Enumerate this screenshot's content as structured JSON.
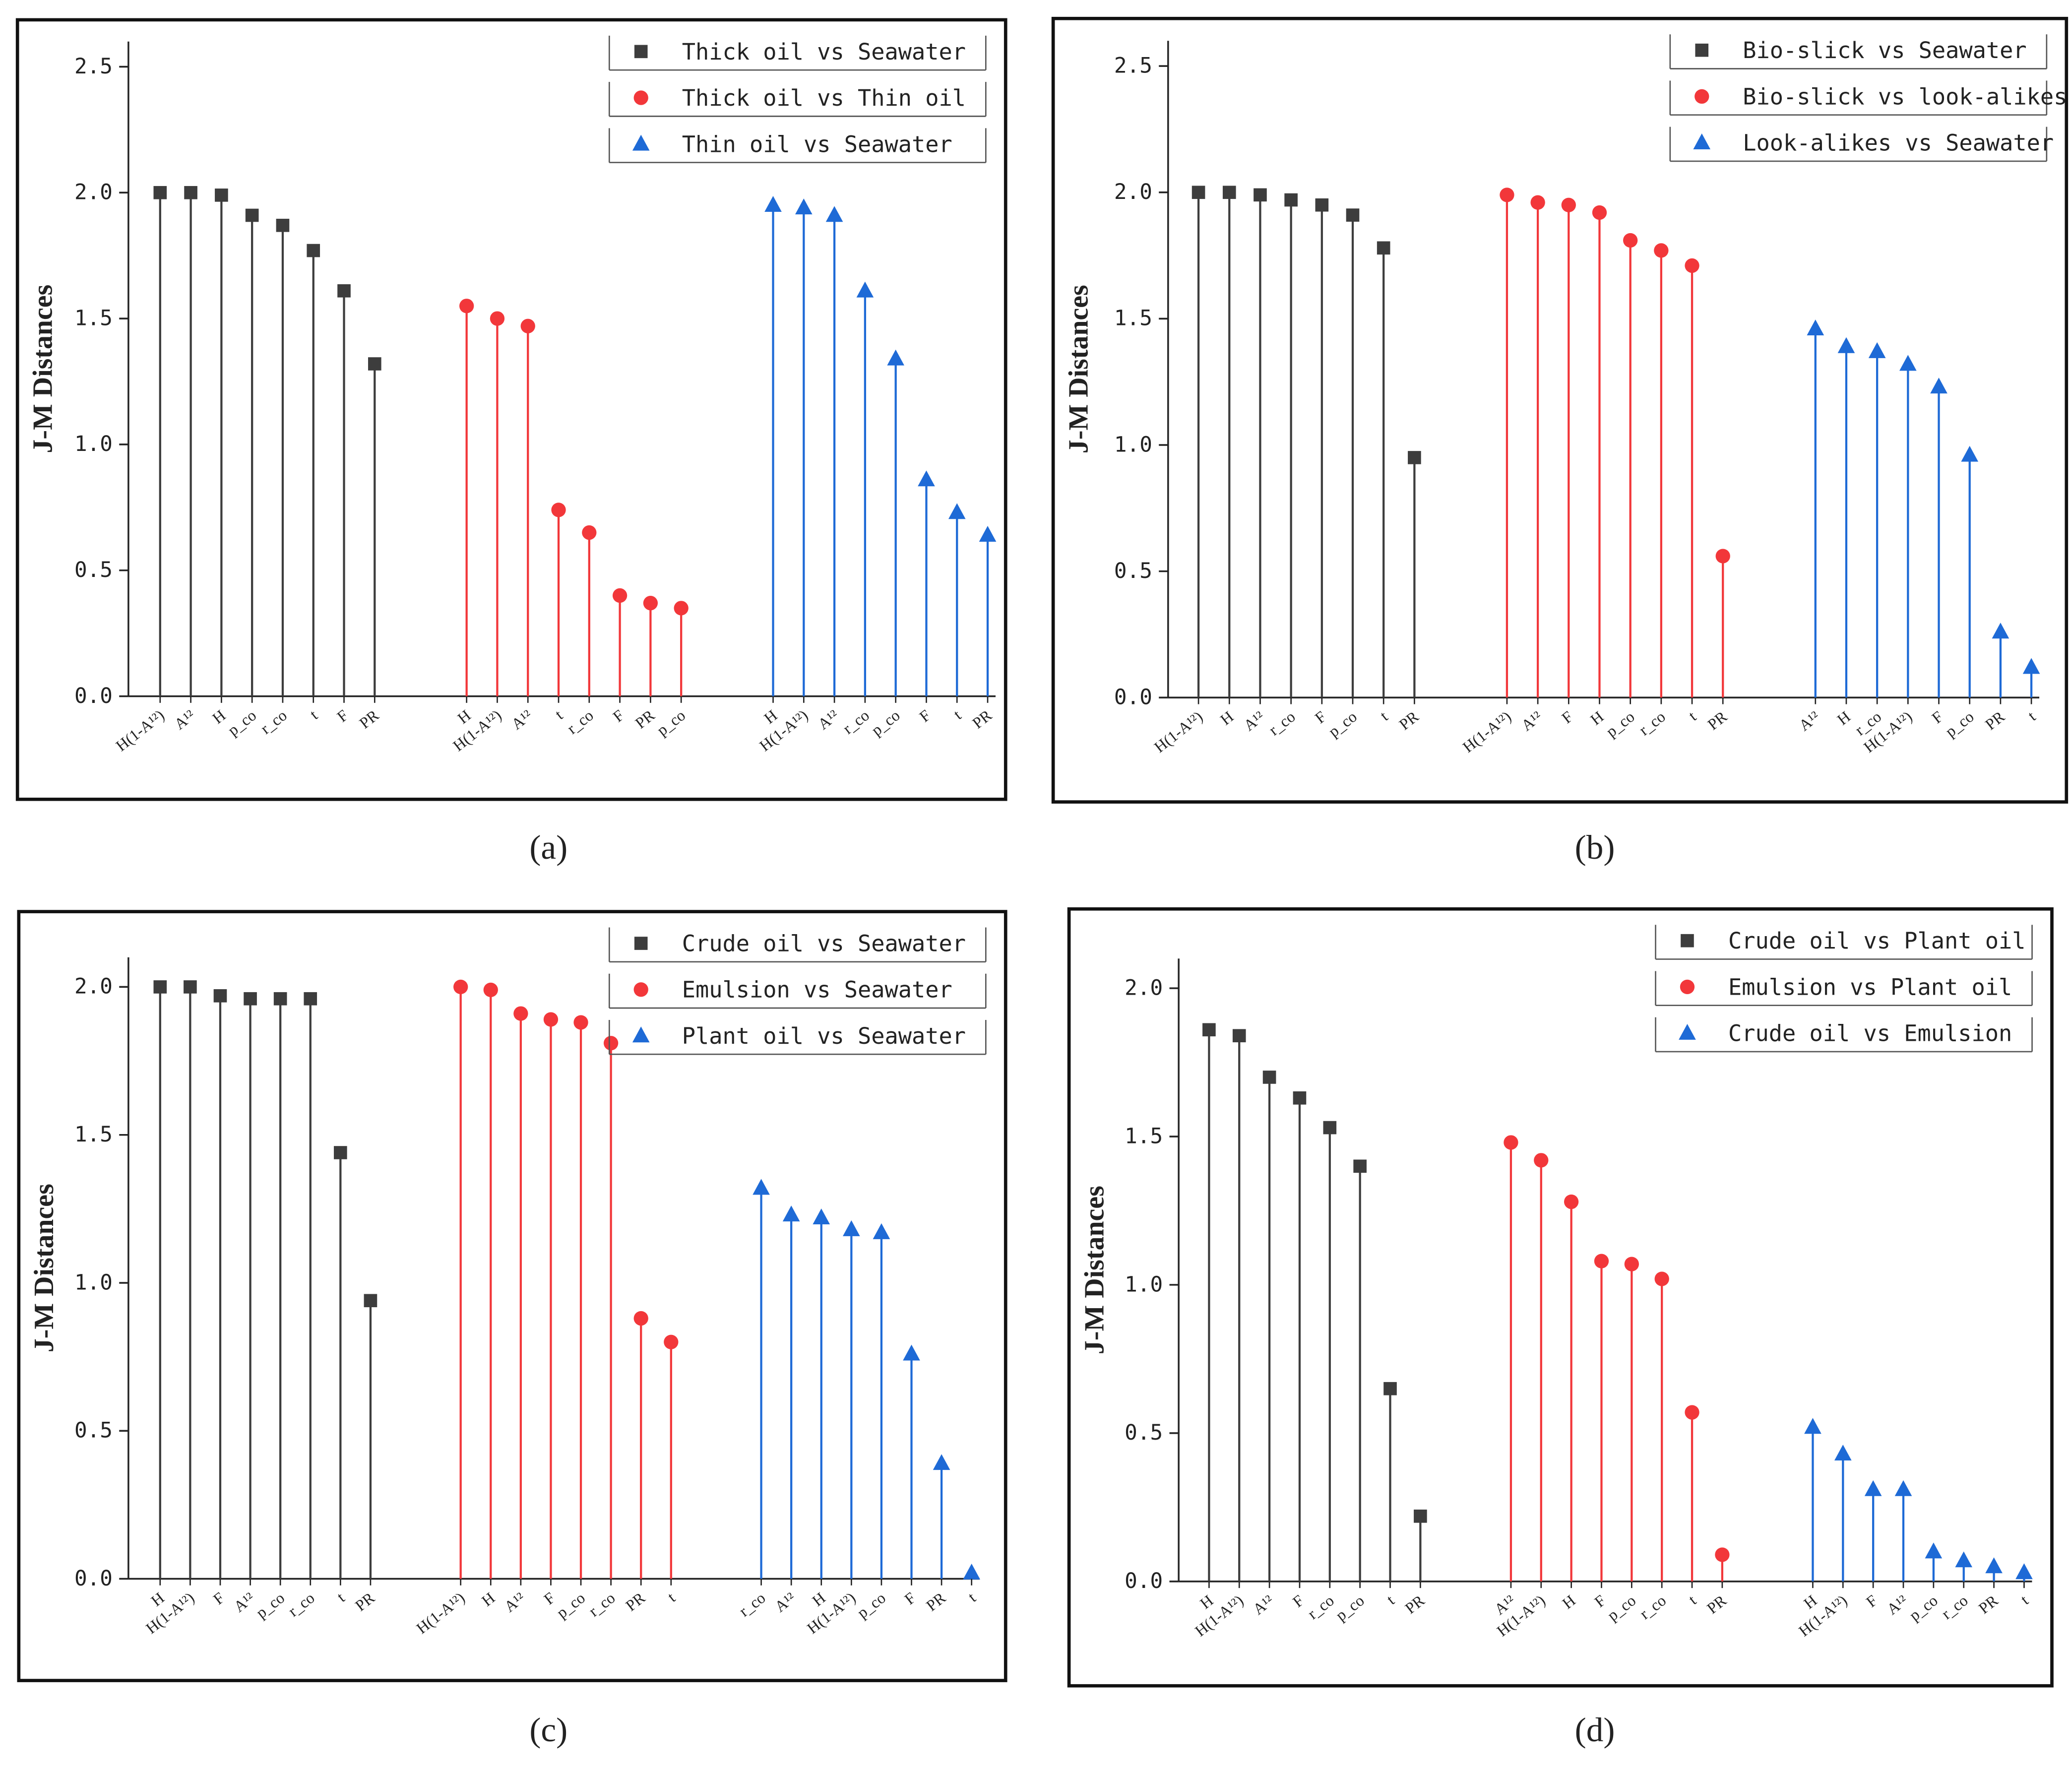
{
  "chart_data": [
    {
      "type": "stem",
      "label": "(a)",
      "ylabel": "J-M Distances",
      "ylim": [
        0,
        2.6
      ],
      "yticks": [
        {
          "value": 0,
          "label": "0.0"
        },
        {
          "value": 0.5,
          "label": "0.5"
        },
        {
          "value": 1,
          "label": "1.0"
        },
        {
          "value": 1.5,
          "label": "1.5"
        },
        {
          "value": 2,
          "label": "2.0"
        },
        {
          "value": 2.5,
          "label": "2.5"
        }
      ],
      "legend": "upper right",
      "series": [
        {
          "name": "Thick oil vs Seawater",
          "color": "#3d3d3d",
          "marker": "square",
          "categories": [
            "H(1-A¹²)",
            "A¹²",
            "H",
            "p_co",
            "r_co",
            "t",
            "F",
            "PR"
          ],
          "values": [
            2.0,
            2.0,
            1.99,
            1.91,
            1.87,
            1.77,
            1.61,
            1.32
          ]
        },
        {
          "name": "Thick oil vs Thin oil",
          "color": "#f2373a",
          "marker": "circle",
          "categories": [
            "H",
            "H(1-A¹²)",
            "A¹²",
            "t",
            "r_co",
            "F",
            "PR",
            "p_co"
          ],
          "values": [
            1.55,
            1.5,
            1.47,
            0.74,
            0.65,
            0.4,
            0.37,
            0.35
          ]
        },
        {
          "name": "Thin oil vs Seawater",
          "color": "#1e6ad6",
          "marker": "triangle",
          "categories": [
            "H",
            "H(1-A¹²)",
            "A¹²",
            "r_co",
            "p_co",
            "F",
            "t",
            "PR"
          ],
          "values": [
            1.95,
            1.94,
            1.91,
            1.61,
            1.34,
            0.86,
            0.73,
            0.64
          ]
        }
      ]
    },
    {
      "type": "stem",
      "label": "(b)",
      "ylabel": "J-M Distances",
      "ylim": [
        0,
        2.6
      ],
      "yticks": [
        {
          "value": 0,
          "label": "0.0"
        },
        {
          "value": 0.5,
          "label": "0.5"
        },
        {
          "value": 1,
          "label": "1.0"
        },
        {
          "value": 1.5,
          "label": "1.5"
        },
        {
          "value": 2,
          "label": "2.0"
        },
        {
          "value": 2.5,
          "label": "2.5"
        }
      ],
      "legend": "upper right",
      "series": [
        {
          "name": "Bio-slick vs Seawater",
          "color": "#3d3d3d",
          "marker": "square",
          "categories": [
            "H(1-A¹²)",
            "H",
            "A¹²",
            "r_co",
            "F",
            "p_co",
            "t",
            "PR"
          ],
          "values": [
            2.0,
            2.0,
            1.99,
            1.97,
            1.95,
            1.91,
            1.78,
            0.95
          ]
        },
        {
          "name": "Bio-slick vs look-alikes",
          "color": "#f2373a",
          "marker": "circle",
          "categories": [
            "H(1-A¹²)",
            "A¹²",
            "F",
            "H",
            "p_co",
            "r_co",
            "t",
            "PR"
          ],
          "values": [
            1.99,
            1.96,
            1.95,
            1.92,
            1.81,
            1.77,
            1.71,
            0.56
          ]
        },
        {
          "name": "Look-alikes vs Seawater",
          "color": "#1e6ad6",
          "marker": "triangle",
          "categories": [
            "A¹²",
            "H",
            "r_co",
            "H(1-A¹²)",
            "F",
            "p_co",
            "PR",
            "t"
          ],
          "values": [
            1.46,
            1.39,
            1.37,
            1.32,
            1.23,
            0.96,
            0.26,
            0.12
          ]
        }
      ]
    },
    {
      "type": "stem",
      "label": "(c)",
      "ylabel": "J-M Distances",
      "ylim": [
        0,
        2.1
      ],
      "yticks": [
        {
          "value": 0,
          "label": "0.0"
        },
        {
          "value": 0.5,
          "label": "0.5"
        },
        {
          "value": 1,
          "label": "1.0"
        },
        {
          "value": 1.5,
          "label": "1.5"
        },
        {
          "value": 2,
          "label": "2.0"
        }
      ],
      "legend": "upper right",
      "series": [
        {
          "name": "Crude oil vs Seawater",
          "color": "#3d3d3d",
          "marker": "square",
          "categories": [
            "H",
            "H(1-A¹²)",
            "F",
            "A¹²",
            "p_co",
            "r_co",
            "t",
            "PR"
          ],
          "values": [
            2.0,
            2.0,
            1.97,
            1.96,
            1.96,
            1.96,
            1.44,
            0.94
          ]
        },
        {
          "name": "Emulsion vs Seawater",
          "color": "#f2373a",
          "marker": "circle",
          "categories": [
            "H(1-A¹²)",
            "H",
            "A¹²",
            "F",
            "p_co",
            "r_co",
            "PR",
            "t"
          ],
          "values": [
            2.0,
            1.99,
            1.91,
            1.89,
            1.88,
            1.81,
            0.88,
            0.8
          ]
        },
        {
          "name": "Plant oil vs Seawater",
          "color": "#1e6ad6",
          "marker": "triangle",
          "categories": [
            "r_co",
            "A¹²",
            "H",
            "H(1-A¹²)",
            "p_co",
            "F",
            "PR",
            "t"
          ],
          "values": [
            1.32,
            1.23,
            1.22,
            1.18,
            1.17,
            0.76,
            0.39,
            0.02
          ]
        }
      ]
    },
    {
      "type": "stem",
      "label": "(d)",
      "ylabel": "J-M Distances",
      "ylim": [
        0,
        2.1
      ],
      "yticks": [
        {
          "value": 0,
          "label": "0.0"
        },
        {
          "value": 0.5,
          "label": "0.5"
        },
        {
          "value": 1,
          "label": "1.0"
        },
        {
          "value": 1.5,
          "label": "1.5"
        },
        {
          "value": 2,
          "label": "2.0"
        }
      ],
      "legend": "upper right",
      "series": [
        {
          "name": "Crude oil vs Plant oil",
          "color": "#3d3d3d",
          "marker": "square",
          "categories": [
            "H",
            "H(1-A¹²)",
            "A¹²",
            "F",
            "r_co",
            "p_co",
            "t",
            "PR"
          ],
          "values": [
            1.86,
            1.84,
            1.7,
            1.63,
            1.53,
            1.4,
            0.65,
            0.22
          ]
        },
        {
          "name": "Emulsion vs Plant oil",
          "color": "#f2373a",
          "marker": "circle",
          "categories": [
            "A¹²",
            "H(1-A¹²)",
            "H",
            "F",
            "p_co",
            "r_co",
            "t",
            "PR"
          ],
          "values": [
            1.48,
            1.42,
            1.28,
            1.08,
            1.07,
            1.02,
            0.57,
            0.09
          ]
        },
        {
          "name": "Crude oil vs Emulsion",
          "color": "#1e6ad6",
          "marker": "triangle",
          "categories": [
            "H",
            "H(1-A¹²)",
            "F",
            "A¹²",
            "p_co",
            "r_co",
            "PR",
            "t"
          ],
          "values": [
            0.52,
            0.43,
            0.31,
            0.31,
            0.1,
            0.07,
            0.05,
            0.03
          ]
        }
      ]
    }
  ]
}
